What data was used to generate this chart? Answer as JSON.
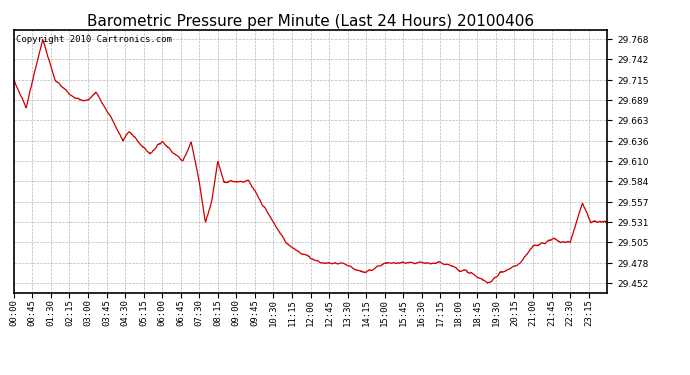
{
  "title": "Barometric Pressure per Minute (Last 24 Hours) 20100406",
  "copyright": "Copyright 2010 Cartronics.com",
  "line_color": "#cc0000",
  "background_color": "#ffffff",
  "grid_color": "#b0b0b0",
  "yticks": [
    29.452,
    29.478,
    29.505,
    29.531,
    29.557,
    29.584,
    29.61,
    29.636,
    29.663,
    29.689,
    29.715,
    29.742,
    29.768
  ],
  "ylim": [
    29.44,
    29.78
  ],
  "xtick_labels": [
    "00:00",
    "00:45",
    "01:30",
    "02:15",
    "03:00",
    "03:45",
    "04:30",
    "05:15",
    "06:00",
    "06:45",
    "07:30",
    "08:15",
    "09:00",
    "09:45",
    "10:30",
    "11:15",
    "12:00",
    "12:45",
    "13:30",
    "14:15",
    "15:00",
    "15:45",
    "16:30",
    "17:15",
    "18:00",
    "18:45",
    "19:30",
    "20:15",
    "21:00",
    "21:45",
    "22:30",
    "23:15"
  ],
  "title_fontsize": 11,
  "tick_fontsize": 6.5,
  "copyright_fontsize": 6.5,
  "keypoints_t": [
    0,
    30,
    70,
    100,
    130,
    160,
    180,
    200,
    220,
    240,
    265,
    280,
    300,
    330,
    360,
    390,
    410,
    430,
    450,
    465,
    480,
    495,
    510,
    540,
    570,
    600,
    630,
    660,
    700,
    750,
    800,
    850,
    900,
    930,
    960,
    990,
    1020,
    1050,
    1080,
    1110,
    1150,
    1180,
    1200,
    1230,
    1260,
    1290,
    1310,
    1330,
    1350,
    1380,
    1400,
    1415,
    1430,
    1440
  ],
  "keypoints_v": [
    29.715,
    29.68,
    29.768,
    29.715,
    29.7,
    29.689,
    29.689,
    29.7,
    29.68,
    29.663,
    29.636,
    29.65,
    29.636,
    29.62,
    29.636,
    29.62,
    29.61,
    29.636,
    29.584,
    29.531,
    29.557,
    29.61,
    29.584,
    29.584,
    29.584,
    29.557,
    29.531,
    29.505,
    29.49,
    29.478,
    29.478,
    29.465,
    29.478,
    29.478,
    29.478,
    29.478,
    29.478,
    29.478,
    29.47,
    29.465,
    29.452,
    29.465,
    29.47,
    29.478,
    29.5,
    29.505,
    29.51,
    29.505,
    29.505,
    29.557,
    29.531,
    29.531,
    29.531,
    29.531
  ]
}
